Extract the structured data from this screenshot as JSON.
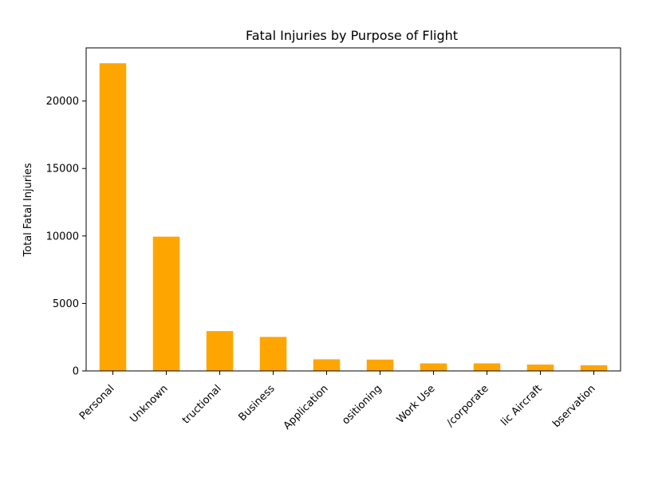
{
  "chart_data": {
    "type": "bar",
    "title": "Fatal Injuries by Purpose of Flight",
    "xlabel": "",
    "ylabel": "Total Fatal Injuries",
    "categories": [
      "Personal",
      "Unknown",
      "Instructional",
      "Business",
      "Aerial Application",
      "Positioning",
      "Other Work Use",
      "Executive/corporate",
      "Public Aircraft",
      "Aerial Observation"
    ],
    "tick_labels": [
      "Personal",
      "Unknown",
      "tructional",
      "Business",
      "Application",
      "ositioning",
      "Work Use",
      "/corporate",
      "lic Aircraft",
      "bservation"
    ],
    "values": [
      22800,
      9950,
      2950,
      2520,
      860,
      840,
      560,
      560,
      470,
      420
    ],
    "ylim": [
      0,
      23940
    ],
    "yticks": [
      0,
      5000,
      10000,
      15000,
      20000
    ],
    "bar_color": "#ffa500",
    "grid": false,
    "legend": "none"
  }
}
